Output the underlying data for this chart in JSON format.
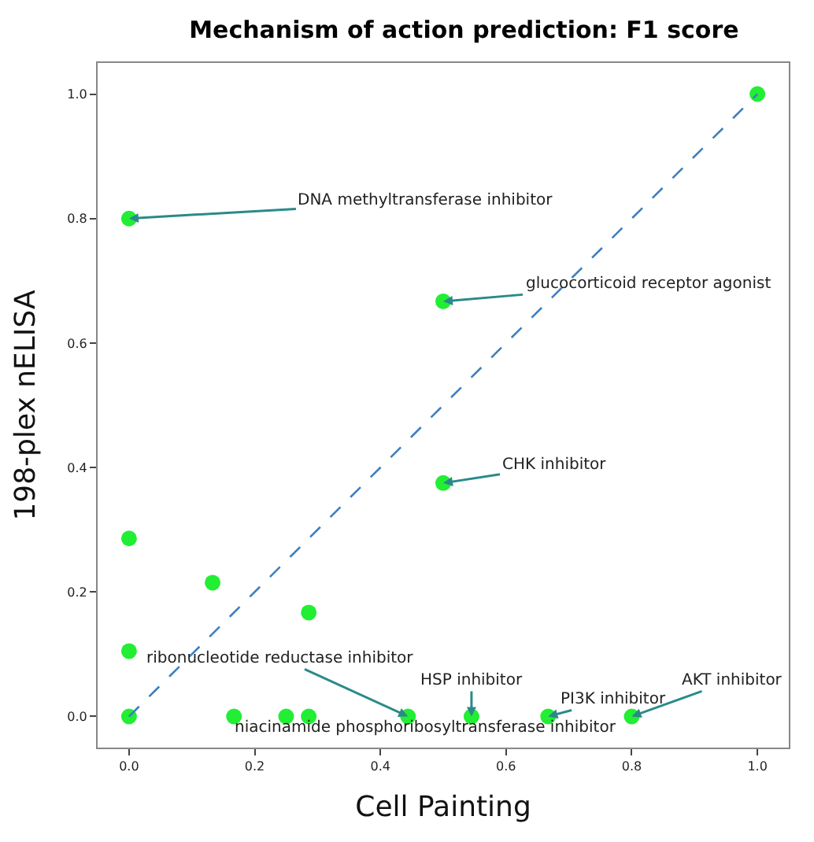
{
  "chart_data": {
    "type": "scatter",
    "title": "Mechanism of action prediction: F1 score",
    "xlabel": "Cell Painting",
    "ylabel": "198-plex nELISA",
    "series": [
      {
        "marker": "circle",
        "color": "#22ee33",
        "x": [
          0,
          0,
          0,
          0,
          0.133,
          0.286,
          0.167,
          0.25,
          0.286,
          0.444,
          0.545,
          0.667,
          0.8,
          0.5,
          0.5,
          1
        ],
        "values": [
          0,
          0.8,
          0.286,
          0.105,
          0.215,
          0.167,
          0,
          0,
          0,
          0,
          0,
          0,
          0,
          0.667,
          0.375,
          1
        ]
      },
      {
        "type": "line",
        "marker": "none",
        "color": "#3f7fbf",
        "line_style": "dashed",
        "x": [
          0,
          1
        ],
        "values": [
          0,
          1
        ]
      }
    ],
    "annotations": [
      {
        "text": "DNA methyltransferase inhibitor",
        "x": 0,
        "y": 0.8
      },
      {
        "text": "glucocorticoid receptor agonist",
        "x": 0.5,
        "y": 0.667
      },
      {
        "text": "CHK inhibitor",
        "x": 0.5,
        "y": 0.375
      },
      {
        "text": "ribonucleotide reductase inhibitor",
        "x": 0.444,
        "y": 0
      },
      {
        "text": "niacinamide phosphoribosyltransferase inhibitor",
        "x": 0.667,
        "y": 0
      },
      {
        "text": "HSP inhibitor",
        "x": 0.545,
        "y": 0
      },
      {
        "text": "PI3K inhibitor",
        "x": 0.667,
        "y": 0
      },
      {
        "text": "AKT inhibitor",
        "x": 0.8,
        "y": 0
      }
    ],
    "xlim": [
      -0.05,
      1.05
    ],
    "ylim": [
      -0.05,
      1.05
    ],
    "xticks": [
      {
        "value": 0,
        "label": "0.0"
      },
      {
        "value": 0.2,
        "label": "0.2"
      },
      {
        "value": 0.4,
        "label": "0.4"
      },
      {
        "value": 0.6,
        "label": "0.6"
      },
      {
        "value": 0.8,
        "label": "0.8"
      },
      {
        "value": 1,
        "label": "1.0"
      }
    ],
    "yticks": [
      {
        "value": 0,
        "label": "0.0"
      },
      {
        "value": 0.2,
        "label": "0.2"
      },
      {
        "value": 0.4,
        "label": "0.4"
      },
      {
        "value": 0.6,
        "label": "0.6"
      },
      {
        "value": 0.8,
        "label": "0.8"
      },
      {
        "value": 1,
        "label": "1.0"
      }
    ]
  }
}
